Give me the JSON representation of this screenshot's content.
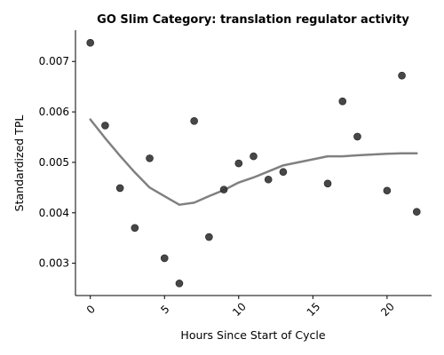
{
  "chart_data": {
    "type": "scatter",
    "title": "GO Slim Category: translation regulator activity",
    "xlabel": "Hours Since Start of Cycle",
    "ylabel": "Standardized TPL",
    "xlim": [
      -1,
      23
    ],
    "ylim": [
      0.00236,
      0.00762
    ],
    "xticks": [
      0,
      5,
      10,
      15,
      20
    ],
    "xtick_labels": [
      "0",
      "5",
      "10",
      "15",
      "20"
    ],
    "yticks": [
      0.003,
      0.004,
      0.005,
      0.006,
      0.007
    ],
    "ytick_labels": [
      "0.003",
      "0.004",
      "0.005",
      "0.006",
      "0.007"
    ],
    "grid": false,
    "series": [
      {
        "kind": "points",
        "color": "#333333",
        "x": [
          0,
          1,
          2,
          3,
          4,
          5,
          6,
          7,
          8,
          9,
          10,
          11,
          12,
          13,
          16,
          17,
          18,
          20,
          21,
          22
        ],
        "y": [
          0.00737,
          0.00573,
          0.00449,
          0.0037,
          0.00508,
          0.0031,
          0.0026,
          0.00582,
          0.00352,
          0.00446,
          0.00498,
          0.00512,
          0.00466,
          0.00481,
          0.00458,
          0.00621,
          0.00551,
          0.00444,
          0.00672,
          0.00402
        ]
      },
      {
        "kind": "trend",
        "color": "#808080",
        "x": [
          0,
          1,
          2,
          3,
          4,
          5,
          6,
          7,
          8,
          9,
          10,
          11,
          12,
          13,
          16,
          17,
          18,
          20,
          21,
          22
        ],
        "y": [
          0.00585,
          0.00548,
          0.00513,
          0.0048,
          0.0045,
          0.00433,
          0.00416,
          0.0042,
          0.00433,
          0.00445,
          0.0046,
          0.0047,
          0.00482,
          0.00494,
          0.00512,
          0.00512,
          0.00514,
          0.00517,
          0.00518,
          0.00518
        ]
      }
    ]
  }
}
